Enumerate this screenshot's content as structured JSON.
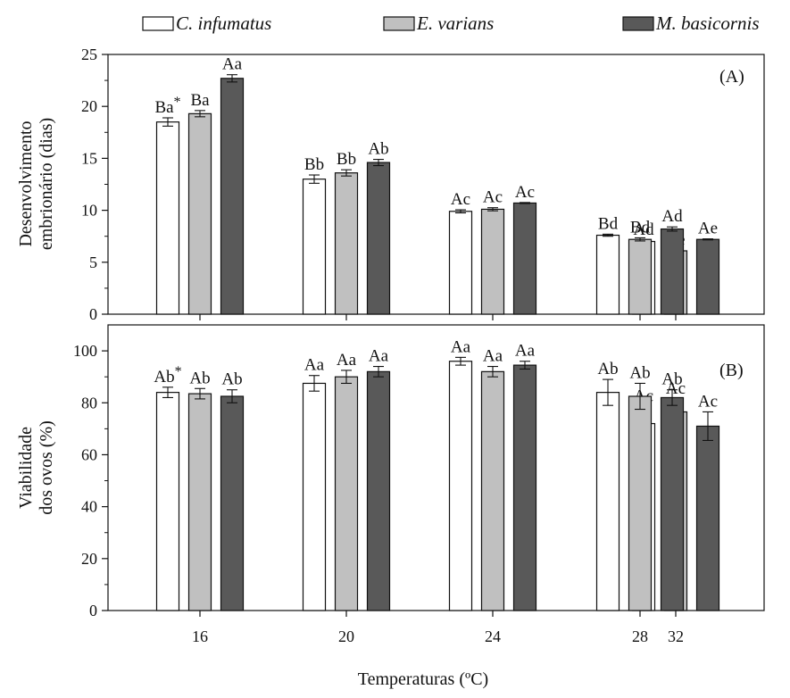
{
  "chart_data": [
    {
      "type": "bar",
      "panel_label": "(A)",
      "ylabel_line1": "Desenvolvimento",
      "ylabel_line2": "embrionário (dias)",
      "ylim": [
        0,
        25
      ],
      "yticks": [
        0,
        5,
        10,
        15,
        20,
        25
      ],
      "categories": [
        "16",
        "20",
        "24",
        "28",
        "32"
      ],
      "series": [
        {
          "name": "C. infumatus",
          "values": [
            18.5,
            13.0,
            9.9,
            7.6,
            7.0
          ],
          "errors": [
            0.4,
            0.4,
            0.15,
            0.1,
            0.15
          ],
          "labels": [
            "Ba*",
            "Bb",
            "Ac",
            "Bd",
            "Ad"
          ]
        },
        {
          "name": "E. varians",
          "values": [
            19.3,
            13.6,
            10.1,
            7.2,
            6.1
          ],
          "errors": [
            0.3,
            0.3,
            0.15,
            0.15,
            0.05
          ],
          "labels": [
            "Ba",
            "Bb",
            "Ac",
            "Bd",
            "Be"
          ]
        },
        {
          "name": "M. basicornis",
          "values": [
            22.7,
            14.6,
            10.7,
            8.2,
            7.2
          ],
          "errors": [
            0.35,
            0.3,
            0.05,
            0.2,
            0.05
          ],
          "labels": [
            "Aa",
            "Ab",
            "Ac",
            "Ad",
            "Ae"
          ]
        }
      ]
    },
    {
      "type": "bar",
      "panel_label": "(B)",
      "ylabel_line1": "Viabilidade",
      "ylabel_line2": "dos ovos (%)",
      "ylim": [
        0,
        110
      ],
      "yticks": [
        0,
        20,
        40,
        60,
        80,
        100
      ],
      "categories": [
        "16",
        "20",
        "24",
        "28",
        "32"
      ],
      "series": [
        {
          "name": "C. infumatus",
          "values": [
            84,
            87.5,
            96,
            84,
            72
          ],
          "errors": [
            2,
            3,
            1.5,
            5,
            6.5
          ],
          "labels": [
            "Ab*",
            "Aa",
            "Aa",
            "Ab",
            "Ac"
          ]
        },
        {
          "name": "E. varians",
          "values": [
            83.5,
            90,
            92,
            82.5,
            76.5
          ],
          "errors": [
            2,
            2.5,
            2,
            5,
            5
          ],
          "labels": [
            "Ab",
            "Aa",
            "Aa",
            "Ab",
            "Ac"
          ]
        },
        {
          "name": "M. basicornis",
          "values": [
            82.5,
            92,
            94.5,
            82,
            71
          ],
          "errors": [
            2.5,
            2,
            1.5,
            3,
            5.5
          ],
          "labels": [
            "Ab",
            "Aa",
            "Aa",
            "Ab",
            "Ac"
          ]
        }
      ]
    }
  ],
  "xlabel": "Temperaturas (ºC)",
  "legend": [
    {
      "name": "C. infumatus",
      "color": "#ffffff"
    },
    {
      "name": "E. varians",
      "color": "#c0c0c0"
    },
    {
      "name": "M. basicornis",
      "color": "#595959"
    }
  ],
  "colors": [
    "#ffffff",
    "#c0c0c0",
    "#595959"
  ]
}
